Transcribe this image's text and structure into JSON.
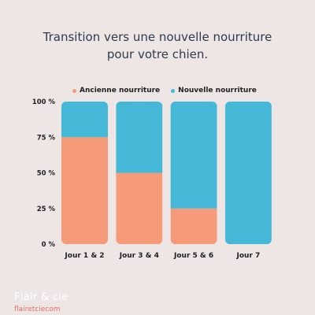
{
  "title_lines": [
    "Transition vers une nouvelle nourriture",
    "pour votre chien."
  ],
  "brand": "Flair & cie",
  "site": "flairetciecom",
  "colors": {
    "background": "#ede6e4",
    "ancienne": "#f59b7a",
    "nouvelle": "#44b8d6",
    "site_text": "#e86f62"
  },
  "chart_data": {
    "type": "bar",
    "stacked": true,
    "title": "Transition vers une nouvelle nourriture pour votre chien.",
    "categories": [
      "Jour 1 & 2",
      "Jour 3 & 4",
      "Jour 5 & 6",
      "Jour 7"
    ],
    "series": [
      {
        "name": "Ancienne nourriture",
        "values": [
          75,
          50,
          25,
          0
        ]
      },
      {
        "name": "Nouvelle nourriture",
        "values": [
          25,
          50,
          75,
          100
        ]
      }
    ],
    "ylim": [
      0,
      100
    ],
    "yticks": [
      "0 %",
      "25 %",
      "50 %",
      "75 %",
      "100 %"
    ],
    "legend": "top",
    "grid": false
  }
}
